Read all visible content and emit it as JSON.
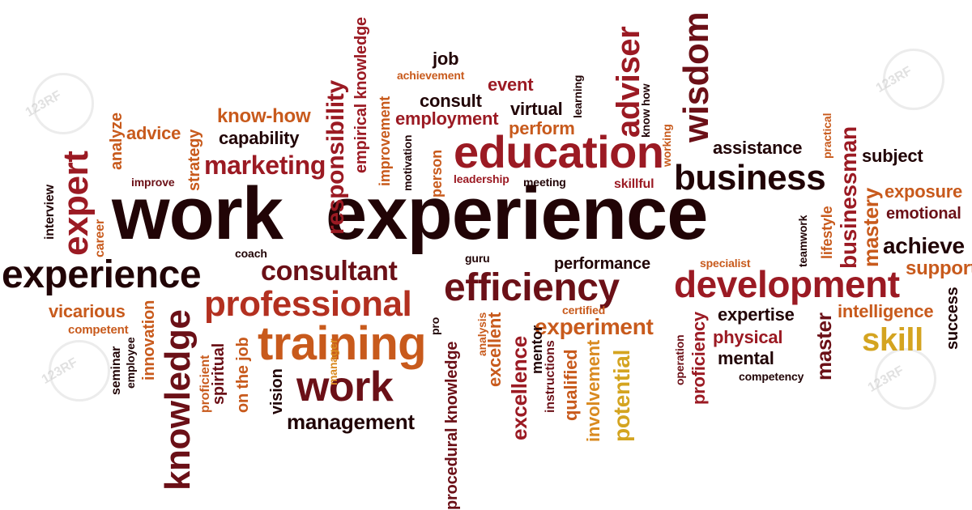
{
  "colors": {
    "darkest": "#210406",
    "maroon": "#6b1017",
    "crimson": "#9b1a23",
    "red": "#b33020",
    "orange": "#c85a1c",
    "amber": "#d98a20",
    "gold": "#d4a420"
  },
  "watermark": {
    "text": "123RF"
  },
  "words": {
    "work": "work",
    "experience": "experience",
    "experience_small": "experience",
    "education": "education",
    "business": "business",
    "development": "development",
    "efficiency": "efficiency",
    "professional": "professional",
    "training": "training",
    "work_small": "work",
    "consultant": "consultant",
    "knowledge": "knowledge",
    "expert": "expert",
    "wisdom": "wisdom",
    "adviser": "adviser",
    "marketing": "marketing",
    "management": "management",
    "experiment": "experiment",
    "skill": "skill",
    "intelligence": "intelligence",
    "businessman": "businessman",
    "mastery": "mastery",
    "achieve": "achieve",
    "support": "support",
    "exposure": "exposure",
    "emotional": "emotional",
    "assistance": "assistance",
    "subject": "subject",
    "responsibility": "responsibility",
    "empirical_knowledge": "empirical knowledge",
    "know_how": "know-how",
    "capability": "capability",
    "advice": "advice",
    "analyze": "analyze",
    "strategy": "strategy",
    "improve": "improve",
    "job": "job",
    "achievement": "achievement",
    "event": "event",
    "consult": "consult",
    "employment": "employment",
    "virtual": "virtual",
    "perform": "perform",
    "learning": "learning",
    "improvement": "improvement",
    "person": "person",
    "leadership": "leadership",
    "meeting": "meeting",
    "skillful": "skillful",
    "know_how_v": "know how",
    "working": "working",
    "vicarious": "vicarious",
    "competent": "competent",
    "innovation": "innovation",
    "interview": "interview",
    "career": "career",
    "seminar": "seminar",
    "employee": "employee",
    "proficient": "proficient",
    "spiritual": "spiritual",
    "on_the_job": "on the job",
    "vision": "vision",
    "manager": "manager",
    "procedural_knowledge": "procedural knowledge",
    "excellent": "excellent",
    "excellence": "excellence",
    "analysis": "analysis",
    "mentor": "mentor",
    "instructions": "instructions",
    "qualified": "qualified",
    "involvement": "involvement",
    "potential": "potential",
    "proficiency": "proficiency",
    "operation": "operation",
    "mental": "mental",
    "competency": "competency",
    "physical": "physical",
    "expertise": "expertise",
    "master": "master",
    "success": "success",
    "specialist": "specialist",
    "lifestyle": "lifestyle",
    "teamwork": "teamwork",
    "practical": "practical",
    "performance": "performance",
    "certified": "certified",
    "guru": "guru",
    "coach": "coach",
    "pro": "pro",
    "motivation": "motivation"
  }
}
